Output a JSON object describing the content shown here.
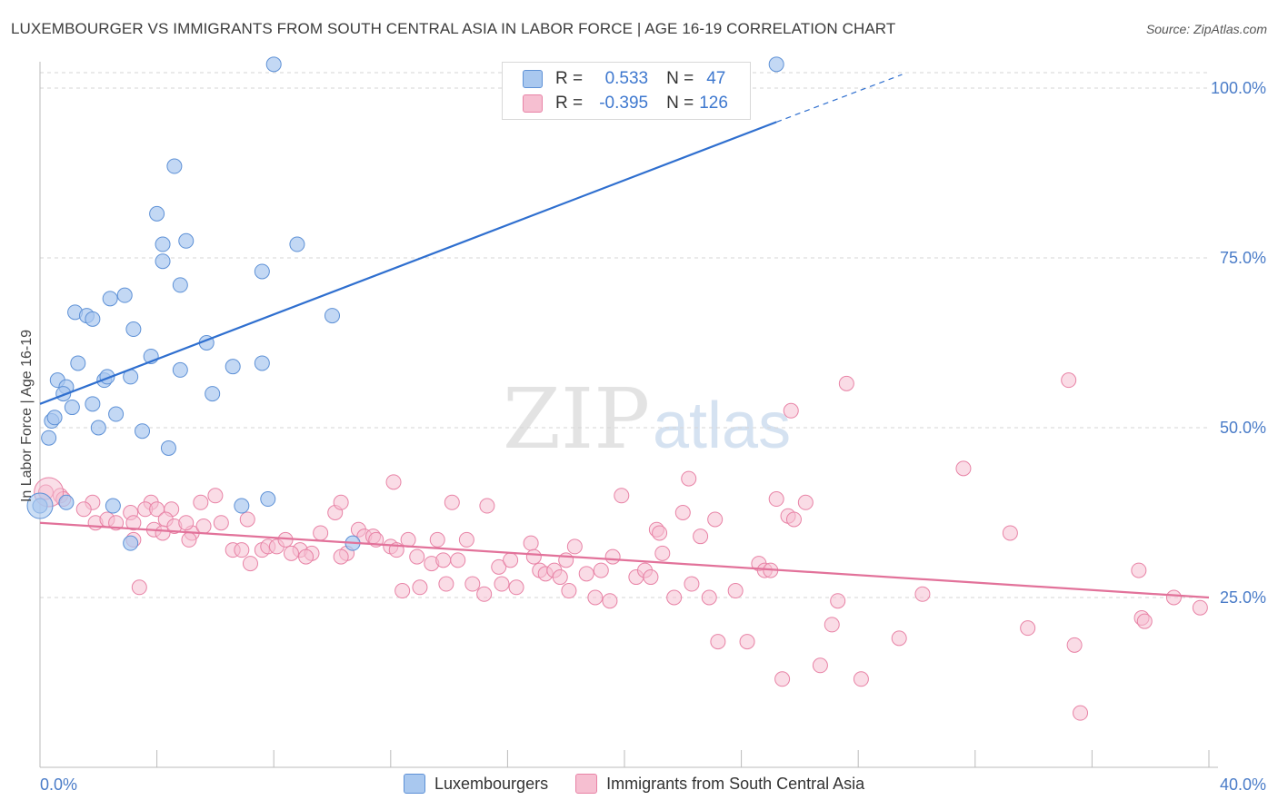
{
  "header": {
    "title": "LUXEMBOURGER VS IMMIGRANTS FROM SOUTH CENTRAL ASIA IN LABOR FORCE | AGE 16-19 CORRELATION CHART",
    "source": "Source: ZipAtlas.com"
  },
  "legend": {
    "r_label": "R =",
    "n_label": "N =",
    "series": [
      {
        "r": "0.533",
        "n": "47"
      },
      {
        "r": "-0.395",
        "n": "126"
      }
    ]
  },
  "bottom_legend": [
    "Luxembourgers",
    "Immigrants from South Central Asia"
  ],
  "watermark": {
    "zip": "ZIP",
    "atlas": "atlas"
  },
  "colors": {
    "blue_fill": "#a9c8ef",
    "blue_stroke": "#5e91d6",
    "blue_line": "#2f6fcf",
    "pink_fill": "#f6bfd1",
    "pink_stroke": "#e883a6",
    "pink_line": "#e2729a",
    "tick_text": "#4a7cc8"
  },
  "chart_data": {
    "type": "scatter",
    "title": "LUXEMBOURGER VS IMMIGRANTS FROM SOUTH CENTRAL ASIA IN LABOR FORCE | AGE 16-19 CORRELATION CHART",
    "xlabel": "",
    "ylabel": "In Labor Force | Age 16-19",
    "xlim": [
      0,
      40
    ],
    "ylim": [
      0,
      102
    ],
    "x_tick_labels": [
      "0.0%",
      "40.0%"
    ],
    "y_ticks": [
      25,
      50,
      75,
      100
    ],
    "y_tick_labels": [
      "25.0%",
      "50.0%",
      "75.0%",
      "100.0%"
    ],
    "grid": true,
    "legend_position": "top-center",
    "series": [
      {
        "name": "Luxembourgers",
        "r": 0.533,
        "n": 47,
        "trend": {
          "x": [
            0,
            25.2
          ],
          "y": [
            53.5,
            95
          ],
          "dashed_to": [
            29.5,
            102
          ]
        },
        "points": [
          [
            8,
            103.5
          ],
          [
            25.2,
            103.5
          ],
          [
            23.4,
            97
          ],
          [
            4.6,
            88.5
          ],
          [
            4,
            81.5
          ],
          [
            4.2,
            77
          ],
          [
            5,
            77.5
          ],
          [
            4.2,
            74.5
          ],
          [
            7.6,
            73
          ],
          [
            8.8,
            77
          ],
          [
            4.8,
            71
          ],
          [
            2.4,
            69
          ],
          [
            2.9,
            69.5
          ],
          [
            1.2,
            67
          ],
          [
            1.6,
            66.5
          ],
          [
            1.8,
            66
          ],
          [
            3.2,
            64.5
          ],
          [
            10,
            66.5
          ],
          [
            5.7,
            62.5
          ],
          [
            3.8,
            60.5
          ],
          [
            1.3,
            59.5
          ],
          [
            6.6,
            59
          ],
          [
            4.8,
            58.5
          ],
          [
            7.6,
            59.5
          ],
          [
            3.1,
            57.5
          ],
          [
            2.2,
            57
          ],
          [
            2.3,
            57.5
          ],
          [
            0.6,
            57
          ],
          [
            5.9,
            55
          ],
          [
            0.9,
            56
          ],
          [
            0.8,
            55
          ],
          [
            1.1,
            53
          ],
          [
            1.8,
            53.5
          ],
          [
            2.6,
            52
          ],
          [
            0.4,
            51
          ],
          [
            0.5,
            51.5
          ],
          [
            2,
            50
          ],
          [
            3.5,
            49.5
          ],
          [
            0.3,
            48.5
          ],
          [
            4.4,
            47
          ],
          [
            0,
            38.5
          ],
          [
            2.5,
            38.5
          ],
          [
            6.9,
            38.5
          ],
          [
            7.8,
            39.5
          ],
          [
            3.1,
            33
          ],
          [
            10.7,
            33
          ],
          [
            0.9,
            39
          ]
        ]
      },
      {
        "name": "Immigrants from South Central Asia",
        "r": -0.395,
        "n": 126,
        "trend": {
          "x": [
            0,
            40
          ],
          "y": [
            36,
            25
          ]
        },
        "points": [
          [
            0.2,
            40.5
          ],
          [
            0.7,
            40
          ],
          [
            0.8,
            39.5
          ],
          [
            1.8,
            39
          ],
          [
            1.5,
            38
          ],
          [
            1.9,
            36
          ],
          [
            2.3,
            36.5
          ],
          [
            2.6,
            36
          ],
          [
            3.1,
            37.5
          ],
          [
            3.2,
            36
          ],
          [
            3.8,
            39
          ],
          [
            3.6,
            38
          ],
          [
            3.9,
            35
          ],
          [
            3.2,
            33.5
          ],
          [
            3.4,
            26.5
          ],
          [
            4,
            38
          ],
          [
            4.5,
            38
          ],
          [
            4.3,
            36.5
          ],
          [
            4.2,
            34.5
          ],
          [
            4.6,
            35.5
          ],
          [
            5.2,
            34.5
          ],
          [
            5,
            36
          ],
          [
            5.5,
            39
          ],
          [
            5.1,
            33.5
          ],
          [
            5.6,
            35.5
          ],
          [
            6,
            40
          ],
          [
            6.2,
            36
          ],
          [
            6.6,
            32
          ],
          [
            6.9,
            32
          ],
          [
            7.2,
            30
          ],
          [
            7.6,
            32
          ],
          [
            7.1,
            36.5
          ],
          [
            7.8,
            32.5
          ],
          [
            8.1,
            32.5
          ],
          [
            8.4,
            33.5
          ],
          [
            8.9,
            32
          ],
          [
            9.3,
            31.5
          ],
          [
            9.1,
            31
          ],
          [
            8.6,
            31.5
          ],
          [
            9.6,
            34.5
          ],
          [
            10.1,
            37.5
          ],
          [
            10.3,
            39
          ],
          [
            10.5,
            31.5
          ],
          [
            10.9,
            35
          ],
          [
            10.3,
            31
          ],
          [
            11.1,
            34
          ],
          [
            11.4,
            34
          ],
          [
            11.5,
            33.5
          ],
          [
            12,
            32.5
          ],
          [
            12.1,
            42
          ],
          [
            12.2,
            32
          ],
          [
            12.6,
            33.5
          ],
          [
            12.9,
            31
          ],
          [
            12.4,
            26
          ],
          [
            13,
            26.5
          ],
          [
            13.4,
            30
          ],
          [
            13.6,
            33.5
          ],
          [
            13.8,
            30.5
          ],
          [
            13.9,
            27
          ],
          [
            14.1,
            39
          ],
          [
            14.3,
            30.5
          ],
          [
            14.6,
            33.5
          ],
          [
            14.8,
            27
          ],
          [
            15.2,
            25.5
          ],
          [
            15.3,
            38.5
          ],
          [
            15.7,
            29.5
          ],
          [
            15.8,
            27
          ],
          [
            16.1,
            30.5
          ],
          [
            16.3,
            26.5
          ],
          [
            16.8,
            33
          ],
          [
            16.9,
            31
          ],
          [
            17.1,
            29
          ],
          [
            17.3,
            28.5
          ],
          [
            17.6,
            29
          ],
          [
            17.8,
            28
          ],
          [
            18,
            30.5
          ],
          [
            18.3,
            32.5
          ],
          [
            18.1,
            26
          ],
          [
            18.7,
            28.5
          ],
          [
            19,
            25
          ],
          [
            19.2,
            29
          ],
          [
            19.5,
            24.5
          ],
          [
            19.6,
            31
          ],
          [
            19.9,
            40
          ],
          [
            20.4,
            28
          ],
          [
            20.7,
            29
          ],
          [
            20.9,
            28
          ],
          [
            21.1,
            35
          ],
          [
            21.3,
            31.5
          ],
          [
            21.2,
            34.5
          ],
          [
            21.7,
            25
          ],
          [
            22,
            37.5
          ],
          [
            22.2,
            42.5
          ],
          [
            22.3,
            27
          ],
          [
            22.6,
            34
          ],
          [
            22.9,
            25
          ],
          [
            23.1,
            36.5
          ],
          [
            23.2,
            18.5
          ],
          [
            23.8,
            26
          ],
          [
            24.2,
            18.5
          ],
          [
            24.6,
            30
          ],
          [
            24.8,
            29
          ],
          [
            25,
            29
          ],
          [
            25.2,
            39.5
          ],
          [
            25.4,
            13
          ],
          [
            25.6,
            37
          ],
          [
            25.7,
            52.5
          ],
          [
            25.8,
            36.5
          ],
          [
            26.2,
            39
          ],
          [
            26.7,
            15
          ],
          [
            27.1,
            21
          ],
          [
            27.3,
            24.5
          ],
          [
            27.6,
            56.5
          ],
          [
            28.1,
            13
          ],
          [
            29.4,
            19
          ],
          [
            30.2,
            25.5
          ],
          [
            31.6,
            44
          ],
          [
            33.2,
            34.5
          ],
          [
            33.8,
            20.5
          ],
          [
            35.2,
            57
          ],
          [
            35.4,
            18
          ],
          [
            35.6,
            8
          ],
          [
            37.6,
            29
          ],
          [
            37.7,
            22
          ],
          [
            37.8,
            21.5
          ],
          [
            38.8,
            25
          ],
          [
            39.7,
            23.5
          ]
        ]
      }
    ]
  }
}
